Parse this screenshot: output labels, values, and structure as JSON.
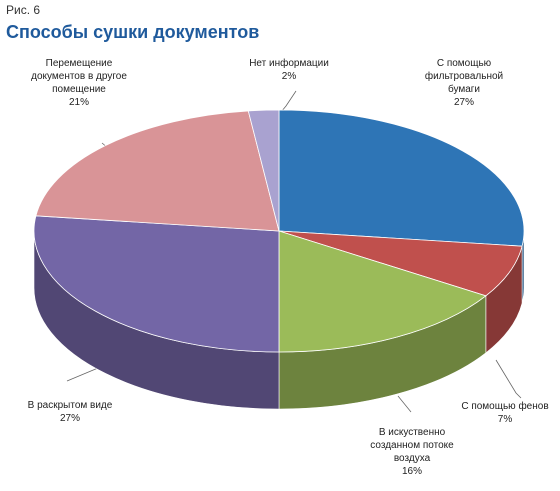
{
  "figure_label": "Рис. 6",
  "title": "Способы сушки документов",
  "chart_data": {
    "type": "pie",
    "title": "Способы сушки документов",
    "slices": [
      {
        "name_lines": [
          "С помощью",
          "фильтровальной",
          "бумаги"
        ],
        "pct_text": "27%",
        "value": 27,
        "color": "#2e75b6"
      },
      {
        "name_lines": [
          "С помощью фенов"
        ],
        "pct_text": "7%",
        "value": 7,
        "color": "#c0504d"
      },
      {
        "name_lines": [
          "В искуственно",
          "созданном потоке",
          "воздуха"
        ],
        "pct_text": "16%",
        "value": 16,
        "color": "#9bbb59"
      },
      {
        "name_lines": [
          "В раскрытом виде"
        ],
        "pct_text": "27%",
        "value": 27,
        "color": "#7366a6"
      },
      {
        "name_lines": [
          "Перемещение",
          "документов в другое",
          "помещение"
        ],
        "pct_text": "21%",
        "value": 21,
        "color": "#d99497"
      },
      {
        "name_lines": [
          "Нет информации"
        ],
        "pct_text": "2%",
        "value": 2,
        "color": "#a9a2d0"
      }
    ]
  }
}
